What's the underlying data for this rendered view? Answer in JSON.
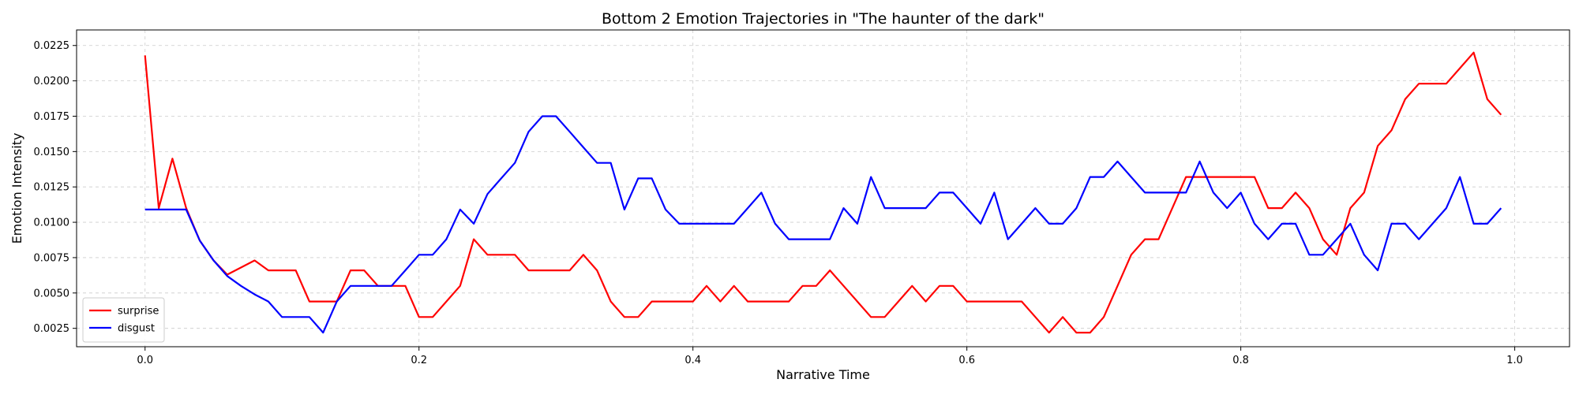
{
  "chart_data": {
    "type": "line",
    "title": "Bottom 2 Emotion Trajectories in \"The haunter of the dark\"",
    "xlabel": "Narrative Time",
    "ylabel": "Emotion Intensity",
    "xlim": [
      -0.05,
      1.04
    ],
    "ylim": [
      0.0012,
      0.0236
    ],
    "xticks": [
      0.0,
      0.2,
      0.4,
      0.6,
      0.8,
      1.0
    ],
    "xtick_labels": [
      "0.0",
      "0.2",
      "0.4",
      "0.6",
      "0.8",
      "1.0"
    ],
    "yticks": [
      0.0025,
      0.005,
      0.0075,
      0.01,
      0.0125,
      0.015,
      0.0175,
      0.02,
      0.0225
    ],
    "ytick_labels": [
      "0.0025",
      "0.0050",
      "0.0075",
      "0.0100",
      "0.0125",
      "0.0150",
      "0.0175",
      "0.0200",
      "0.0225"
    ],
    "grid": true,
    "legend_position": "lower-left",
    "series": [
      {
        "name": "surprise",
        "color": "#ff0000",
        "x": [
          0.0,
          0.01,
          0.02,
          0.03,
          0.04,
          0.05,
          0.06,
          0.07,
          0.08,
          0.09,
          0.1,
          0.11,
          0.12,
          0.13,
          0.14,
          0.15,
          0.16,
          0.17,
          0.18,
          0.19,
          0.2,
          0.21,
          0.22,
          0.23,
          0.24,
          0.25,
          0.26,
          0.27,
          0.28,
          0.29,
          0.3,
          0.31,
          0.32,
          0.33,
          0.34,
          0.35,
          0.36,
          0.37,
          0.38,
          0.39,
          0.4,
          0.41,
          0.42,
          0.43,
          0.44,
          0.45,
          0.46,
          0.47,
          0.48,
          0.49,
          0.5,
          0.51,
          0.52,
          0.53,
          0.54,
          0.55,
          0.56,
          0.57,
          0.58,
          0.59,
          0.6,
          0.61,
          0.62,
          0.63,
          0.64,
          0.65,
          0.66,
          0.67,
          0.68,
          0.69,
          0.7,
          0.71,
          0.72,
          0.73,
          0.74,
          0.75,
          0.76,
          0.77,
          0.78,
          0.79,
          0.8,
          0.81,
          0.82,
          0.83,
          0.84,
          0.85,
          0.86,
          0.87,
          0.88,
          0.89,
          0.9,
          0.91,
          0.92,
          0.93,
          0.94,
          0.95,
          0.96,
          0.97,
          0.98,
          0.99
        ],
        "y": [
          0.0218,
          0.011,
          0.0145,
          0.011,
          0.0087,
          0.0073,
          0.0063,
          0.0068,
          0.0073,
          0.0066,
          0.0066,
          0.0066,
          0.0044,
          0.0044,
          0.0044,
          0.0066,
          0.0066,
          0.0055,
          0.0055,
          0.0055,
          0.0033,
          0.0033,
          0.0044,
          0.0055,
          0.0088,
          0.0077,
          0.0077,
          0.0077,
          0.0066,
          0.0066,
          0.0066,
          0.0066,
          0.0077,
          0.0066,
          0.0044,
          0.0033,
          0.0033,
          0.0044,
          0.0044,
          0.0044,
          0.0044,
          0.0055,
          0.0044,
          0.0055,
          0.0044,
          0.0044,
          0.0044,
          0.0044,
          0.0055,
          0.0055,
          0.0066,
          0.0055,
          0.0044,
          0.0033,
          0.0033,
          0.0044,
          0.0055,
          0.0044,
          0.0055,
          0.0055,
          0.0044,
          0.0044,
          0.0044,
          0.0044,
          0.0044,
          0.0033,
          0.0022,
          0.0033,
          0.0022,
          0.0022,
          0.0033,
          0.0055,
          0.0077,
          0.0088,
          0.0088,
          0.011,
          0.0132,
          0.0132,
          0.0132,
          0.0132,
          0.0132,
          0.0132,
          0.011,
          0.011,
          0.0121,
          0.011,
          0.0088,
          0.0077,
          0.011,
          0.0121,
          0.0154,
          0.0165,
          0.0187,
          0.0198,
          0.0198,
          0.0198,
          0.0209,
          0.022,
          0.0187,
          0.0176
        ]
      },
      {
        "name": "disgust",
        "color": "#0000ff",
        "x": [
          0.0,
          0.01,
          0.02,
          0.03,
          0.04,
          0.05,
          0.06,
          0.07,
          0.08,
          0.09,
          0.1,
          0.11,
          0.12,
          0.13,
          0.14,
          0.15,
          0.16,
          0.17,
          0.18,
          0.19,
          0.2,
          0.21,
          0.22,
          0.23,
          0.24,
          0.25,
          0.26,
          0.27,
          0.28,
          0.29,
          0.3,
          0.31,
          0.32,
          0.33,
          0.34,
          0.35,
          0.36,
          0.37,
          0.38,
          0.39,
          0.4,
          0.41,
          0.42,
          0.43,
          0.44,
          0.45,
          0.46,
          0.47,
          0.48,
          0.49,
          0.5,
          0.51,
          0.52,
          0.53,
          0.54,
          0.55,
          0.56,
          0.57,
          0.58,
          0.59,
          0.6,
          0.61,
          0.62,
          0.63,
          0.64,
          0.65,
          0.66,
          0.67,
          0.68,
          0.69,
          0.7,
          0.71,
          0.72,
          0.73,
          0.74,
          0.75,
          0.76,
          0.77,
          0.78,
          0.79,
          0.8,
          0.81,
          0.82,
          0.83,
          0.84,
          0.85,
          0.86,
          0.87,
          0.88,
          0.89,
          0.9,
          0.91,
          0.92,
          0.93,
          0.94,
          0.95,
          0.96,
          0.97,
          0.98,
          0.99
        ],
        "y": [
          0.0109,
          0.0109,
          0.0109,
          0.0109,
          0.0087,
          0.0073,
          0.0062,
          0.0055,
          0.0049,
          0.0044,
          0.0033,
          0.0033,
          0.0033,
          0.0022,
          0.0044,
          0.0055,
          0.0055,
          0.0055,
          0.0055,
          0.0066,
          0.0077,
          0.0077,
          0.0088,
          0.0109,
          0.0099,
          0.012,
          0.0131,
          0.0142,
          0.0164,
          0.0175,
          0.0175,
          0.0164,
          0.0153,
          0.0142,
          0.0142,
          0.0109,
          0.0131,
          0.0131,
          0.0109,
          0.0099,
          0.0099,
          0.0099,
          0.0099,
          0.0099,
          0.011,
          0.0121,
          0.0099,
          0.0088,
          0.0088,
          0.0088,
          0.0088,
          0.011,
          0.0099,
          0.0132,
          0.011,
          0.011,
          0.011,
          0.011,
          0.0121,
          0.0121,
          0.011,
          0.0099,
          0.0121,
          0.0088,
          0.0099,
          0.011,
          0.0099,
          0.0099,
          0.011,
          0.0132,
          0.0132,
          0.0143,
          0.0132,
          0.0121,
          0.0121,
          0.0121,
          0.0121,
          0.0143,
          0.0121,
          0.011,
          0.0121,
          0.0099,
          0.0088,
          0.0099,
          0.0099,
          0.0077,
          0.0077,
          0.0088,
          0.0099,
          0.0077,
          0.0066,
          0.0099,
          0.0099,
          0.0088,
          0.0099,
          0.011,
          0.0132,
          0.0099,
          0.0099,
          0.011
        ]
      }
    ]
  }
}
